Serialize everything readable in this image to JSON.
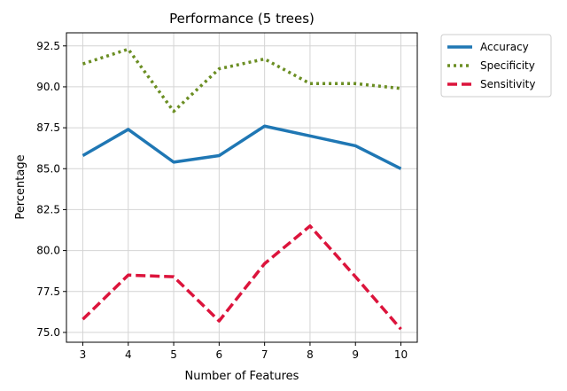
{
  "chart_data": {
    "type": "line",
    "title": "Performance (5 trees)",
    "xlabel": "Number of Features",
    "ylabel": "Percentage",
    "x": [
      3,
      4,
      5,
      6,
      7,
      8,
      9,
      10
    ],
    "xticks": [
      "3",
      "4",
      "5",
      "6",
      "7",
      "8",
      "9",
      "10"
    ],
    "yticks": [
      "75.0",
      "77.5",
      "80.0",
      "82.5",
      "85.0",
      "87.5",
      "90.0",
      "92.5"
    ],
    "ytick_values": [
      75.0,
      77.5,
      80.0,
      82.5,
      85.0,
      87.5,
      90.0,
      92.5
    ],
    "xlim": [
      2.64,
      10.36
    ],
    "ylim": [
      74.4,
      93.3
    ],
    "grid": true,
    "legend_position": "outside-right-top",
    "series": [
      {
        "name": "Accuracy",
        "color": "#1f77b4",
        "style": "solid",
        "values": [
          85.8,
          87.4,
          85.4,
          85.8,
          87.6,
          87.0,
          86.4,
          85.0
        ]
      },
      {
        "name": "Specificity",
        "color": "#6b8e23",
        "style": "dotted",
        "values": [
          91.4,
          92.3,
          88.5,
          91.1,
          91.7,
          90.2,
          90.2,
          89.9
        ]
      },
      {
        "name": "Sensitivity",
        "color": "#dc143c",
        "style": "dashed",
        "values": [
          75.8,
          78.5,
          78.4,
          75.7,
          79.2,
          81.5,
          78.4,
          75.2
        ]
      }
    ]
  }
}
